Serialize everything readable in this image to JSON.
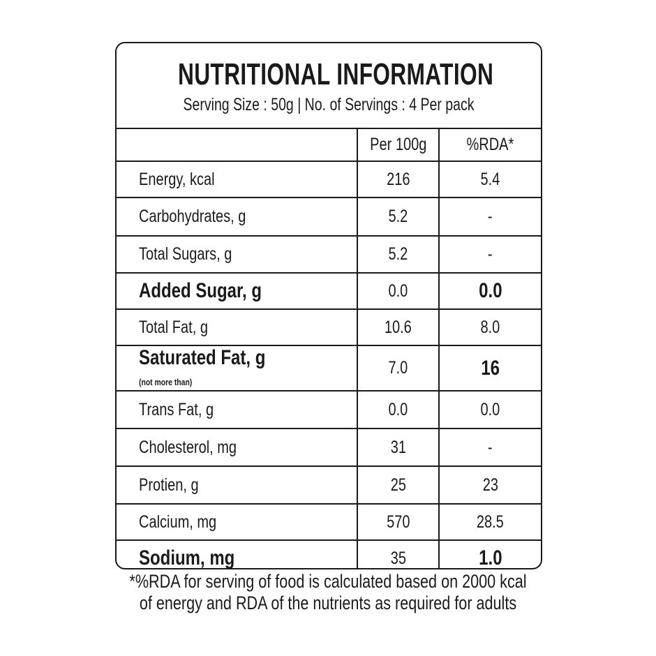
{
  "title": "NUTRITIONAL INFORMATION",
  "serving": "Serving Size : 50g |  No. of Servings : 4 Per pack",
  "columns": [
    "",
    "Per 100g",
    "%RDA*"
  ],
  "rows": [
    {
      "label": "Energy, kcal",
      "per100g": "216",
      "rda": "5.4",
      "bold": false
    },
    {
      "label": "Carbohydrates, g",
      "per100g": "5.2",
      "rda": "-",
      "bold": false
    },
    {
      "label": "Total Sugars, g",
      "per100g": "5.2",
      "rda": "-",
      "bold": false
    },
    {
      "label": "Added Sugar, g",
      "per100g": "0.0",
      "rda": "0.0",
      "bold": true
    },
    {
      "label": "Total Fat, g",
      "per100g": "10.6",
      "rda": "8.0",
      "bold": false
    },
    {
      "label": "Saturated Fat, g",
      "note": "(not more than)",
      "per100g": "7.0",
      "rda": "16",
      "bold": true
    },
    {
      "label": "Trans Fat, g",
      "per100g": "0.0",
      "rda": "0.0",
      "bold": false
    },
    {
      "label": "Cholesterol, mg",
      "per100g": "31",
      "rda": "-",
      "bold": false
    },
    {
      "label": "Protien, g",
      "per100g": "25",
      "rda": "23",
      "bold": false
    },
    {
      "label": "Calcium, mg",
      "per100g": "570",
      "rda": "28.5",
      "bold": false
    },
    {
      "label": "Sodium, mg",
      "per100g": "35",
      "rda": "1.0",
      "bold": true
    }
  ],
  "footnote": [
    "*%RDA for serving of food is calculated based on 2000 kcal",
    "of energy and RDA of the nutrients as required for adults"
  ]
}
